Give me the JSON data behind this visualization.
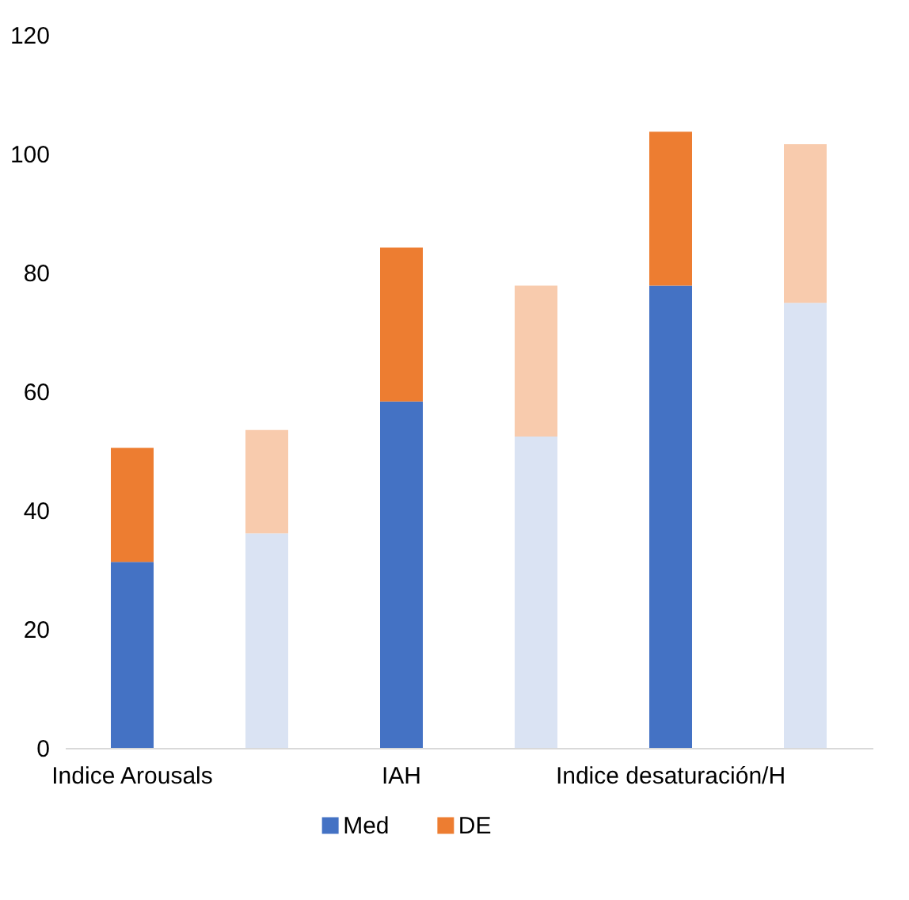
{
  "chart_data": {
    "type": "bar",
    "stacked": true,
    "categories": [
      "Indice Arousals",
      null,
      "IAH",
      null,
      "Indice desaturación/H",
      null
    ],
    "series": [
      {
        "name": "Med",
        "color": "#4472c4",
        "colors": [
          "#4472c4",
          "#dae3f3",
          "#4472c4",
          "#dae3f3",
          "#4472c4",
          "#dae3f3"
        ],
        "values": [
          31.3,
          36.1,
          58.3,
          52.4,
          77.8,
          74.9
        ]
      },
      {
        "name": "DE",
        "color": "#ed7d31",
        "colors": [
          "#ed7d31",
          "#f8cbad",
          "#ed7d31",
          "#f8cbad",
          "#ed7d31",
          "#f8cbad"
        ],
        "values": [
          19.2,
          17.4,
          25.9,
          25.4,
          25.9,
          26.7
        ]
      }
    ],
    "ylim": [
      0,
      120
    ],
    "yticks": [
      0,
      20,
      40,
      60,
      80,
      100,
      120
    ],
    "grid": false,
    "legend": "bottom"
  }
}
